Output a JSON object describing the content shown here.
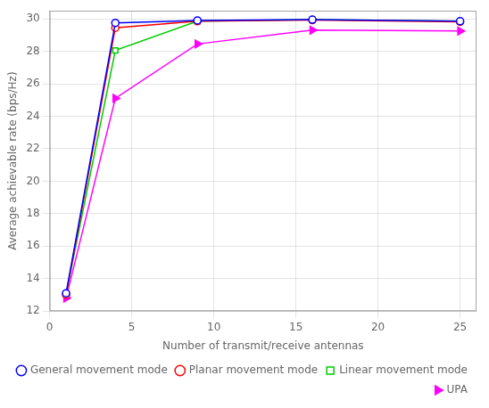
{
  "chart_data": {
    "type": "line",
    "x": [
      1,
      4,
      9,
      16,
      25
    ],
    "series": [
      {
        "name": "General movement mode",
        "color": "#0000ff",
        "marker": "circle",
        "values": [
          13.1,
          29.75,
          29.9,
          29.95,
          29.85
        ]
      },
      {
        "name": "Planar movement mode",
        "color": "#ff0000",
        "marker": "circle",
        "values": [
          13.0,
          29.45,
          29.85,
          29.92,
          29.82
        ]
      },
      {
        "name": "Linear movement mode",
        "color": "#00cc00",
        "marker": "square",
        "values": [
          13.05,
          28.05,
          29.85,
          29.95,
          29.85
        ]
      },
      {
        "name": "UPA",
        "color": "#ff00ff",
        "marker": "triangle_right",
        "values": [
          12.8,
          25.1,
          28.45,
          29.3,
          29.25
        ]
      }
    ],
    "xlabel": "Number of transmit/receive antennas",
    "ylabel": "Average achievable rate (bps/Hz)",
    "xlim": [
      0,
      26
    ],
    "ylim": [
      12,
      30.5
    ],
    "xticks": [
      0,
      5,
      10,
      15,
      20,
      25
    ],
    "yticks": [
      12,
      14,
      16,
      18,
      20,
      22,
      24,
      26,
      28,
      30
    ],
    "grid": true,
    "legend": "lower right"
  }
}
